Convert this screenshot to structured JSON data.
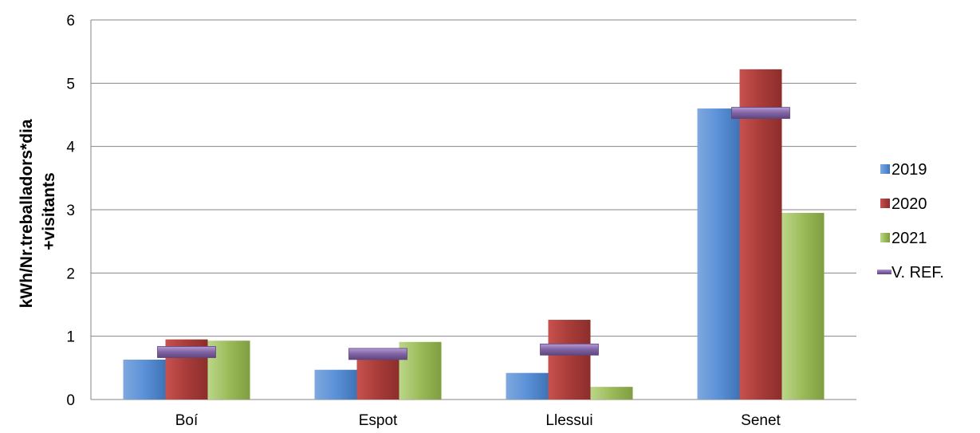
{
  "chart_data": {
    "type": "bar",
    "categories": [
      "Boí",
      "Espot",
      "Llessui",
      "Senet"
    ],
    "series": [
      {
        "name": "2019",
        "values": [
          0.63,
          0.47,
          0.42,
          4.6
        ],
        "color": "#4F81BD"
      },
      {
        "name": "2020",
        "values": [
          0.95,
          0.77,
          1.26,
          5.22
        ],
        "color": "#C0504D"
      },
      {
        "name": "2021",
        "values": [
          0.93,
          0.91,
          0.2,
          2.95
        ],
        "color": "#9BBB59"
      }
    ],
    "reference": {
      "name": "V. REF.",
      "values": [
        0.75,
        0.72,
        0.79,
        4.53
      ],
      "color": "#8064A2"
    },
    "ylabel_lines": [
      "kWh/Nr.treballadors*dia",
      "+visitants"
    ],
    "ylim": [
      0,
      6
    ],
    "yticks": [
      0,
      1,
      2,
      3,
      4,
      5,
      6
    ],
    "grid": true,
    "legend_position": "right"
  }
}
